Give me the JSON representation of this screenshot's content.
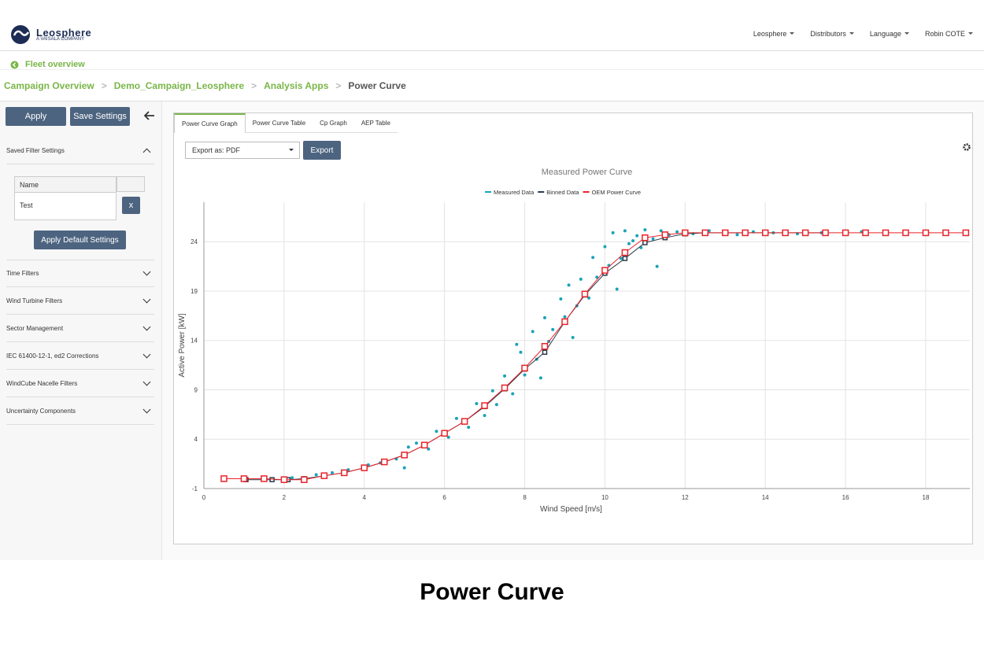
{
  "header": {
    "brand": "Leosphere",
    "tagline": "A VAISALA COMPANY",
    "nav": [
      "Leosphere",
      "Distributors",
      "Language",
      "Robin COTE"
    ]
  },
  "breadcrumb": {
    "fleet": "Fleet overview",
    "trail": [
      "Campaign Overview",
      "Demo_Campaign_Leosphere",
      "Analysis Apps",
      "Power Curve"
    ]
  },
  "sidebar": {
    "buttons": [
      "Apply",
      "Save Settings"
    ],
    "saved_title": "Saved Filter Settings",
    "table": {
      "header": "Name",
      "rows": [
        "Test"
      ],
      "delete": "x"
    },
    "default_button": "Apply Default Settings",
    "sections": [
      "Time Filters",
      "Wind Turbine Filters",
      "Sector Management",
      "IEC 61400-12-1, ed2 Corrections",
      "WindCube Nacelle Filters",
      "Uncertainty Components"
    ]
  },
  "tabs": [
    "Power Curve Graph",
    "Power Curve Table",
    "Cp Graph",
    "AEP Table"
  ],
  "export": {
    "select": "Export as: PDF",
    "button": "Export"
  },
  "caption": "Power Curve",
  "chart_data": {
    "type": "scatter",
    "title": "Measured Power Curve",
    "x_label": "Wind Speed [m/s]",
    "y_label": "Active Power [kW]",
    "xlim": [
      0,
      19.1
    ],
    "ylim": [
      -1,
      28
    ],
    "xticks": [
      0,
      2,
      4,
      6,
      8,
      10,
      12,
      14,
      16,
      18
    ],
    "yticks": [
      -1,
      4,
      9,
      14,
      19,
      24
    ],
    "grid": true,
    "legend": "top",
    "series": [
      {
        "name": "Measured Data",
        "type": "scatter",
        "color": "#1aa3b8",
        "x": [
          2.2,
          2.8,
          3.2,
          3.6,
          4.1,
          4.4,
          4.8,
          5.0,
          5.1,
          5.3,
          5.6,
          5.8,
          6.1,
          6.3,
          6.6,
          6.8,
          7.0,
          7.2,
          7.3,
          7.5,
          7.7,
          7.9,
          8.0,
          8.2,
          8.3,
          8.5,
          8.6,
          8.7,
          8.9,
          9.0,
          9.1,
          9.3,
          9.4,
          9.6,
          9.7,
          9.8,
          10.0,
          10.1,
          10.2,
          10.4,
          10.5,
          10.6,
          10.8,
          10.9,
          11.0,
          11.2,
          11.4,
          11.6,
          11.8,
          12.2,
          12.6,
          13.0,
          13.3,
          13.7,
          14.2,
          14.8,
          15.4,
          16.0,
          16.4,
          9.2,
          8.4,
          7.8,
          10.3,
          10.7,
          11.3
        ],
        "values": [
          0.1,
          0.4,
          0.6,
          0.9,
          1.4,
          1.6,
          2.0,
          1.1,
          3.2,
          3.6,
          3.0,
          4.8,
          4.2,
          6.1,
          5.2,
          7.6,
          6.4,
          8.9,
          7.5,
          10.4,
          8.6,
          12.8,
          10.5,
          14.9,
          12.1,
          16.3,
          13.9,
          15.1,
          18.2,
          16.4,
          19.6,
          17.5,
          20.2,
          18.3,
          22.4,
          20.4,
          23.5,
          21.6,
          24.9,
          22.3,
          25.1,
          23.8,
          24.6,
          23.4,
          25.2,
          24.3,
          25.1,
          24.7,
          25.0,
          24.8,
          25.1,
          24.9,
          24.7,
          25.0,
          24.9,
          24.8,
          24.9,
          24.9,
          25.0,
          14.3,
          10.2,
          13.6,
          19.2,
          24.1,
          21.5
        ]
      },
      {
        "name": "Binned Data",
        "type": "line",
        "color": "#2b3a4a",
        "x": [
          1.05,
          1.7,
          2.1,
          2.5,
          3,
          3.5,
          4,
          4.5,
          5,
          5.5,
          6,
          6.5,
          7,
          7.5,
          8,
          8.5,
          9,
          9.5,
          10,
          10.5,
          11,
          11.5,
          12,
          12.5,
          13,
          13.5,
          14,
          14.5,
          15,
          15.5
        ],
        "values": [
          -0.1,
          -0.1,
          -0.1,
          0,
          0.3,
          0.6,
          1.1,
          1.7,
          2.4,
          3.4,
          4.6,
          5.8,
          7.3,
          9.1,
          11.1,
          12.8,
          15.9,
          18.6,
          20.8,
          22.3,
          23.9,
          24.4,
          24.8,
          24.9,
          24.9,
          24.9,
          24.9,
          24.9,
          24.9,
          24.9
        ]
      },
      {
        "name": "OEM Power Curve",
        "type": "line",
        "color": "#e8232a",
        "x": [
          0.5,
          1,
          1.5,
          2,
          2.5,
          3,
          3.5,
          4,
          4.5,
          5,
          5.5,
          6,
          6.5,
          7,
          7.5,
          8,
          8.5,
          9,
          9.5,
          10,
          10.5,
          11,
          11.5,
          12,
          12.5,
          13,
          13.5,
          14,
          14.5,
          15,
          15.5,
          16,
          16.5,
          17,
          17.5,
          18,
          18.5,
          19
        ],
        "values": [
          0.0,
          0.0,
          0.0,
          -0.1,
          -0.1,
          0.3,
          0.6,
          1.1,
          1.7,
          2.4,
          3.4,
          4.6,
          5.8,
          7.4,
          9.2,
          11.2,
          13.4,
          15.9,
          18.7,
          21.1,
          22.9,
          24.4,
          24.7,
          24.9,
          24.9,
          24.9,
          24.9,
          24.9,
          24.9,
          24.9,
          24.9,
          24.9,
          24.9,
          24.9,
          24.9,
          24.9,
          24.9,
          24.9
        ]
      }
    ]
  }
}
